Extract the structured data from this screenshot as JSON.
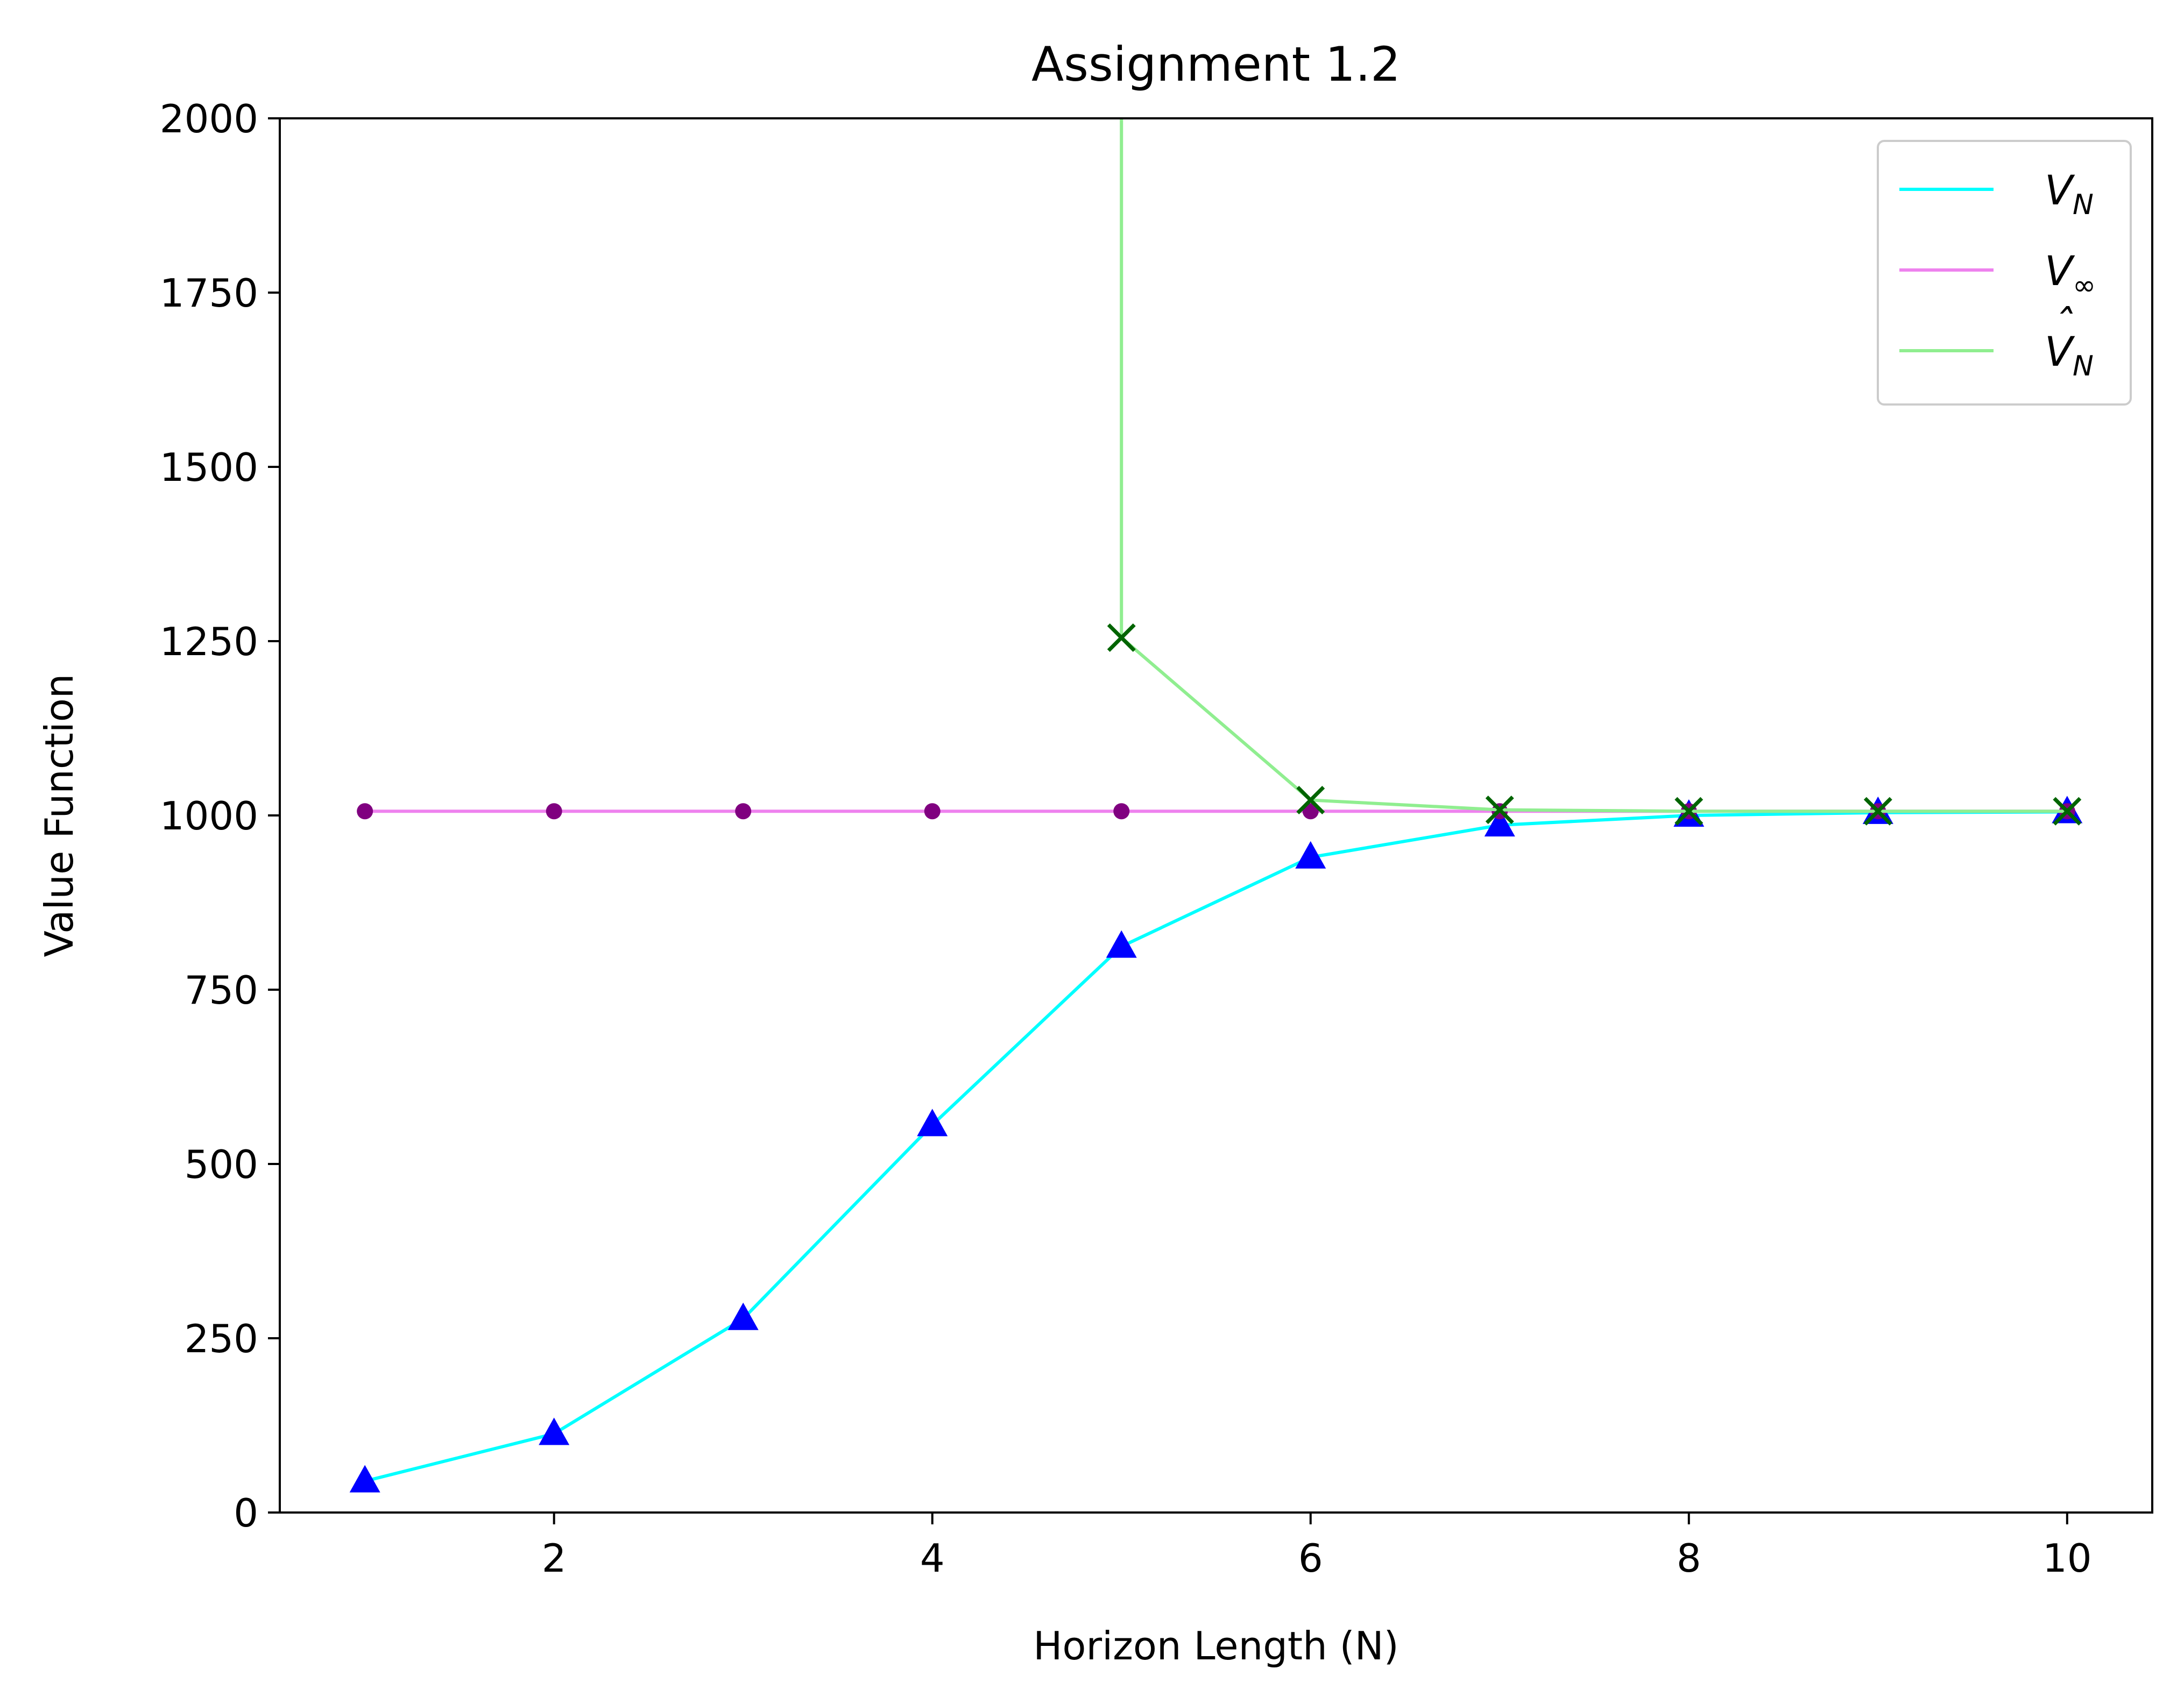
{
  "chart_data": {
    "type": "line",
    "title": "Assignment 1.2",
    "xlabel": "Horizon Length (N)",
    "ylabel": "Value Function",
    "xlim": [
      0.55,
      10.45
    ],
    "ylim": [
      0,
      2000
    ],
    "xticks": [
      2,
      4,
      6,
      8,
      10
    ],
    "yticks": [
      0,
      250,
      500,
      750,
      1000,
      1250,
      1500,
      1750,
      2000
    ],
    "grid": false,
    "legend_position": "top-right",
    "series": [
      {
        "name": "V",
        "name_sub": "N",
        "name_hat": false,
        "color": "#00ffff",
        "marker": "triangle",
        "marker_color": "#0000ff",
        "x": [
          1,
          2,
          3,
          4,
          5,
          6,
          7,
          8,
          9,
          10
        ],
        "y": [
          45,
          113,
          278,
          556,
          812,
          940,
          986,
          1000,
          1004,
          1005
        ]
      },
      {
        "name": "V",
        "name_sub": "∞",
        "name_hat": false,
        "color": "#ee82ee",
        "marker": "circle",
        "marker_color": "#800080",
        "x": [
          1,
          2,
          3,
          4,
          5,
          6,
          7,
          8,
          9,
          10
        ],
        "y": [
          1006,
          1006,
          1006,
          1006,
          1006,
          1006,
          1006,
          1006,
          1006,
          1006
        ]
      },
      {
        "name": "V",
        "name_sub": "N",
        "name_hat": true,
        "color": "#90ee90",
        "marker": "x",
        "marker_color": "#006400",
        "x": [
          5,
          5,
          6,
          7,
          8,
          9,
          10
        ],
        "y": [
          3000,
          1255,
          1022,
          1008,
          1006,
          1006,
          1006
        ],
        "marker_from_index": 1
      }
    ]
  }
}
